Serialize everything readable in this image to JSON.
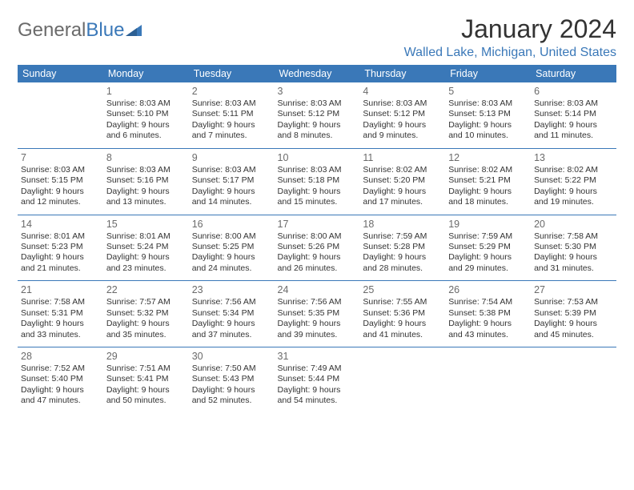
{
  "logo": {
    "part1": "General",
    "part2": "Blue"
  },
  "title": "January 2024",
  "subtitle": "Walled Lake, Michigan, United States",
  "colors": {
    "accent": "#3a78b8",
    "text": "#333333",
    "muted": "#6a6a6a",
    "background": "#ffffff"
  },
  "calendar": {
    "type": "table",
    "columns": [
      "Sunday",
      "Monday",
      "Tuesday",
      "Wednesday",
      "Thursday",
      "Friday",
      "Saturday"
    ],
    "header_bg": "#3a78b8",
    "header_fg": "#ffffff",
    "row_border_color": "#3a78b8",
    "cell_fontsize": 10.5,
    "daynum_fontsize": 12.5,
    "rows": [
      [
        null,
        {
          "n": "1",
          "sunrise": "8:03 AM",
          "sunset": "5:10 PM",
          "daylight": "9 hours and 6 minutes."
        },
        {
          "n": "2",
          "sunrise": "8:03 AM",
          "sunset": "5:11 PM",
          "daylight": "9 hours and 7 minutes."
        },
        {
          "n": "3",
          "sunrise": "8:03 AM",
          "sunset": "5:12 PM",
          "daylight": "9 hours and 8 minutes."
        },
        {
          "n": "4",
          "sunrise": "8:03 AM",
          "sunset": "5:12 PM",
          "daylight": "9 hours and 9 minutes."
        },
        {
          "n": "5",
          "sunrise": "8:03 AM",
          "sunset": "5:13 PM",
          "daylight": "9 hours and 10 minutes."
        },
        {
          "n": "6",
          "sunrise": "8:03 AM",
          "sunset": "5:14 PM",
          "daylight": "9 hours and 11 minutes."
        }
      ],
      [
        {
          "n": "7",
          "sunrise": "8:03 AM",
          "sunset": "5:15 PM",
          "daylight": "9 hours and 12 minutes."
        },
        {
          "n": "8",
          "sunrise": "8:03 AM",
          "sunset": "5:16 PM",
          "daylight": "9 hours and 13 minutes."
        },
        {
          "n": "9",
          "sunrise": "8:03 AM",
          "sunset": "5:17 PM",
          "daylight": "9 hours and 14 minutes."
        },
        {
          "n": "10",
          "sunrise": "8:03 AM",
          "sunset": "5:18 PM",
          "daylight": "9 hours and 15 minutes."
        },
        {
          "n": "11",
          "sunrise": "8:02 AM",
          "sunset": "5:20 PM",
          "daylight": "9 hours and 17 minutes."
        },
        {
          "n": "12",
          "sunrise": "8:02 AM",
          "sunset": "5:21 PM",
          "daylight": "9 hours and 18 minutes."
        },
        {
          "n": "13",
          "sunrise": "8:02 AM",
          "sunset": "5:22 PM",
          "daylight": "9 hours and 19 minutes."
        }
      ],
      [
        {
          "n": "14",
          "sunrise": "8:01 AM",
          "sunset": "5:23 PM",
          "daylight": "9 hours and 21 minutes."
        },
        {
          "n": "15",
          "sunrise": "8:01 AM",
          "sunset": "5:24 PM",
          "daylight": "9 hours and 23 minutes."
        },
        {
          "n": "16",
          "sunrise": "8:00 AM",
          "sunset": "5:25 PM",
          "daylight": "9 hours and 24 minutes."
        },
        {
          "n": "17",
          "sunrise": "8:00 AM",
          "sunset": "5:26 PM",
          "daylight": "9 hours and 26 minutes."
        },
        {
          "n": "18",
          "sunrise": "7:59 AM",
          "sunset": "5:28 PM",
          "daylight": "9 hours and 28 minutes."
        },
        {
          "n": "19",
          "sunrise": "7:59 AM",
          "sunset": "5:29 PM",
          "daylight": "9 hours and 29 minutes."
        },
        {
          "n": "20",
          "sunrise": "7:58 AM",
          "sunset": "5:30 PM",
          "daylight": "9 hours and 31 minutes."
        }
      ],
      [
        {
          "n": "21",
          "sunrise": "7:58 AM",
          "sunset": "5:31 PM",
          "daylight": "9 hours and 33 minutes."
        },
        {
          "n": "22",
          "sunrise": "7:57 AM",
          "sunset": "5:32 PM",
          "daylight": "9 hours and 35 minutes."
        },
        {
          "n": "23",
          "sunrise": "7:56 AM",
          "sunset": "5:34 PM",
          "daylight": "9 hours and 37 minutes."
        },
        {
          "n": "24",
          "sunrise": "7:56 AM",
          "sunset": "5:35 PM",
          "daylight": "9 hours and 39 minutes."
        },
        {
          "n": "25",
          "sunrise": "7:55 AM",
          "sunset": "5:36 PM",
          "daylight": "9 hours and 41 minutes."
        },
        {
          "n": "26",
          "sunrise": "7:54 AM",
          "sunset": "5:38 PM",
          "daylight": "9 hours and 43 minutes."
        },
        {
          "n": "27",
          "sunrise": "7:53 AM",
          "sunset": "5:39 PM",
          "daylight": "9 hours and 45 minutes."
        }
      ],
      [
        {
          "n": "28",
          "sunrise": "7:52 AM",
          "sunset": "5:40 PM",
          "daylight": "9 hours and 47 minutes."
        },
        {
          "n": "29",
          "sunrise": "7:51 AM",
          "sunset": "5:41 PM",
          "daylight": "9 hours and 50 minutes."
        },
        {
          "n": "30",
          "sunrise": "7:50 AM",
          "sunset": "5:43 PM",
          "daylight": "9 hours and 52 minutes."
        },
        {
          "n": "31",
          "sunrise": "7:49 AM",
          "sunset": "5:44 PM",
          "daylight": "9 hours and 54 minutes."
        },
        null,
        null,
        null
      ]
    ]
  }
}
